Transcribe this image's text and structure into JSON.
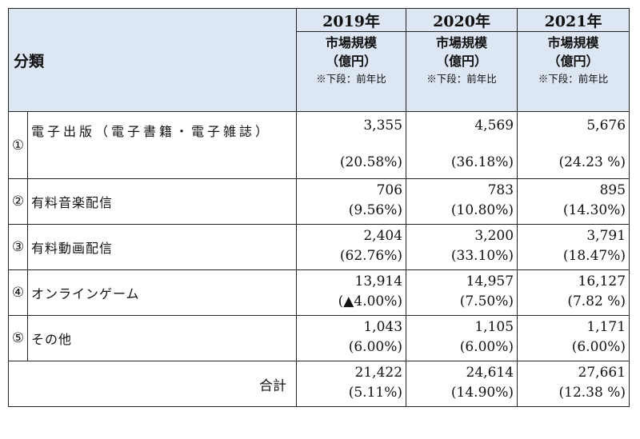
{
  "header": {
    "category_label": "分類",
    "columns": [
      {
        "year": "2019年",
        "line1": "市場規模",
        "line2": "（億円）",
        "note": "※下段：前年比"
      },
      {
        "year": "2020年",
        "line1": "市場規模",
        "line2": "（億円）",
        "note": "※下段：前年比"
      },
      {
        "year": "2021年",
        "line1": "市場規模",
        "line2": "（億円）",
        "note": "※下段：前年比"
      }
    ]
  },
  "rows": [
    {
      "index": "①",
      "name": "電子出版（電子書籍・電子雑誌）",
      "values": [
        "3,355",
        "4,569",
        "5,676"
      ],
      "ratios": [
        "(20.58%)",
        "(36.18%)",
        "(24.23 %)"
      ]
    },
    {
      "index": "②",
      "name": "有料音楽配信",
      "values": [
        "706",
        "783",
        "895"
      ],
      "ratios": [
        "(9.56%)",
        "(10.80%)",
        "(14.30%)"
      ]
    },
    {
      "index": "③",
      "name": "有料動画配信",
      "values": [
        "2,404",
        "3,200",
        "3,791"
      ],
      "ratios": [
        "(62.76%)",
        "(33.10%)",
        "(18.47%)"
      ]
    },
    {
      "index": "④",
      "name": "オンラインゲーム",
      "values": [
        "13,914",
        "14,957",
        "16,127"
      ],
      "ratios": [
        "(▲4.00%)",
        "(7.50%)",
        "(7.82 %)"
      ]
    },
    {
      "index": "⑤",
      "name": "その他",
      "values": [
        "1,043",
        "1,105",
        "1,171"
      ],
      "ratios": [
        "(6.00%)",
        "(6.00%)",
        "(6.00%)"
      ]
    }
  ],
  "total": {
    "label": "合計",
    "values": [
      "21,422",
      "24,614",
      "27,661"
    ],
    "ratios": [
      "(5.11%)",
      "(14.90%)",
      "(12.38 %)"
    ]
  }
}
